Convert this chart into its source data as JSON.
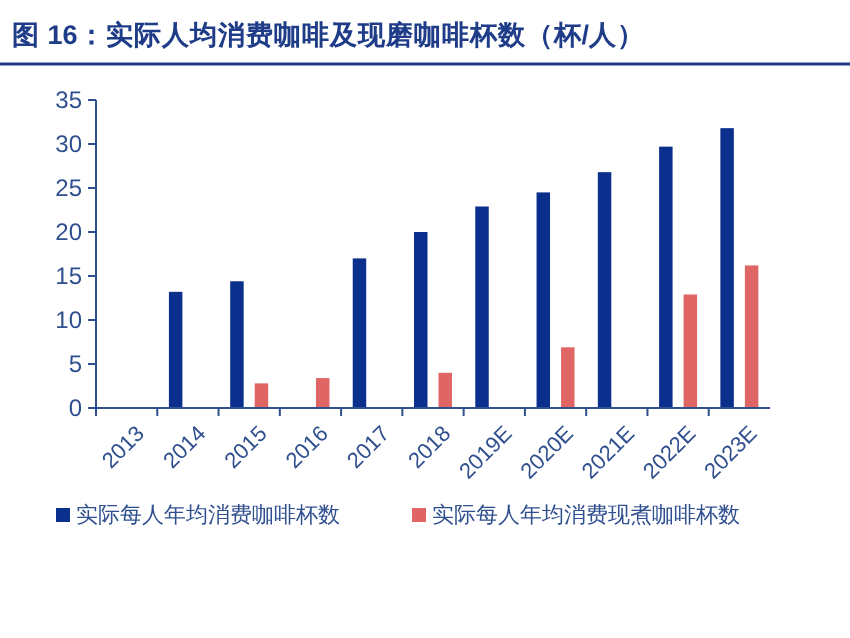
{
  "chart_data": {
    "type": "bar",
    "title": "图 16：实际人均消费咖啡及现磨咖啡杯数（杯/人）",
    "categories": [
      "2013",
      "2014",
      "2015",
      "2016",
      "2017",
      "2018",
      "2019E",
      "2020E",
      "2021E",
      "2022E",
      "2023E"
    ],
    "series": [
      {
        "name": "实际每人年均消费咖啡杯数",
        "color": "#0a2f8c",
        "values": [
          null,
          13.2,
          14.4,
          null,
          17.0,
          20.0,
          22.9,
          24.5,
          26.8,
          29.7,
          31.8
        ]
      },
      {
        "name": "实际每人年均消费现煮咖啡杯数",
        "color": "#e06666",
        "values": [
          null,
          null,
          2.8,
          3.4,
          null,
          4.0,
          null,
          6.9,
          null,
          12.9,
          16.2
        ]
      }
    ],
    "ylim": [
      0,
      35
    ],
    "yticks": [
      0,
      5,
      10,
      15,
      20,
      25,
      30,
      35
    ],
    "legend": "bottom",
    "grid": false
  }
}
